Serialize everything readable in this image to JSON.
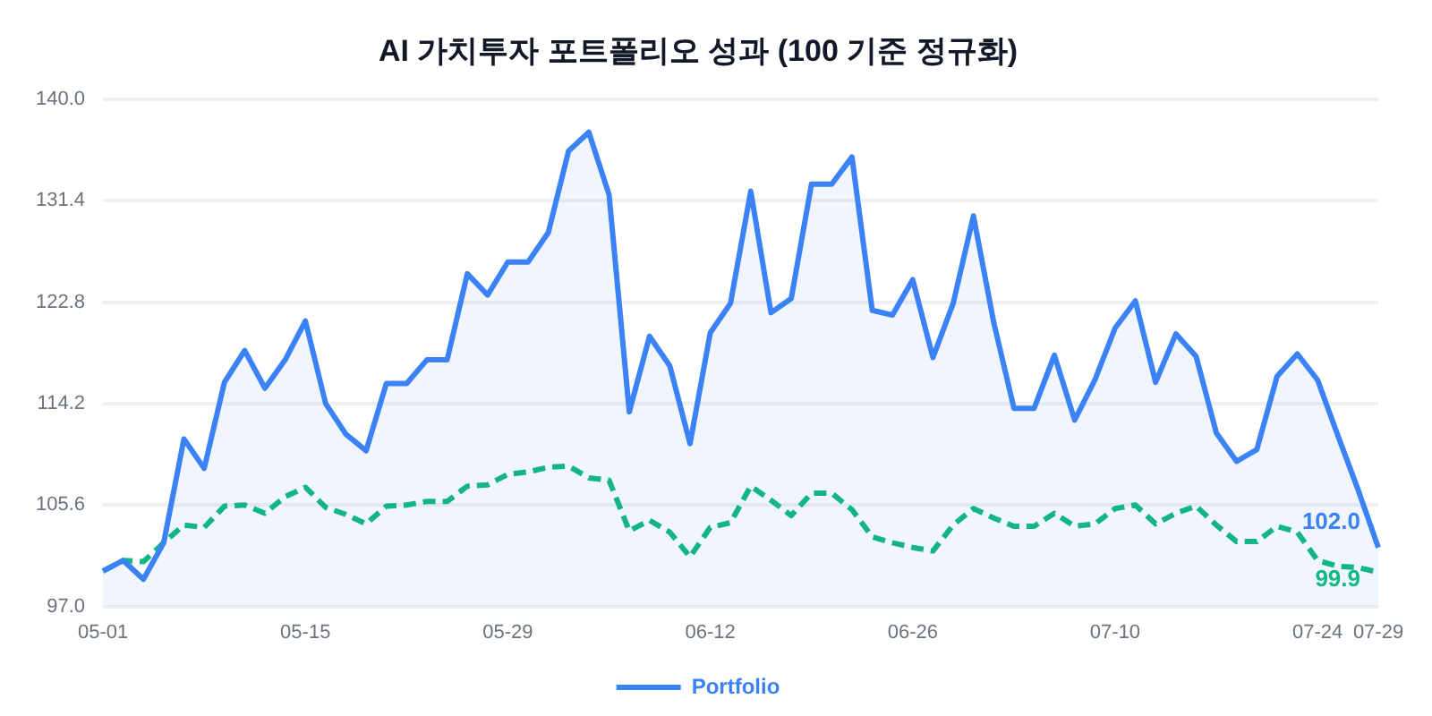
{
  "chart_data": {
    "type": "line",
    "title": "AI 가치투자 포트폴리오 성과 (100 기준 정규화)",
    "categories": [
      "05-01",
      null,
      null,
      null,
      null,
      null,
      null,
      null,
      null,
      null,
      "05-15",
      null,
      null,
      null,
      null,
      null,
      null,
      null,
      null,
      null,
      "05-29",
      null,
      null,
      null,
      null,
      null,
      null,
      null,
      null,
      null,
      "06-12",
      null,
      null,
      null,
      null,
      null,
      null,
      null,
      null,
      null,
      "06-26",
      null,
      null,
      null,
      null,
      null,
      null,
      null,
      null,
      null,
      "07-10",
      null,
      null,
      null,
      null,
      null,
      null,
      null,
      null,
      null,
      "07-24",
      null,
      null,
      "07-29"
    ],
    "series": [
      {
        "name": "Portfolio",
        "type": "area",
        "color": "#3b82f6",
        "line_style": "solid",
        "values": [
          100.0,
          100.9,
          99.3,
          102.4,
          111.2,
          108.7,
          116.0,
          118.7,
          115.5,
          117.9,
          121.2,
          114.2,
          111.6,
          110.2,
          115.9,
          115.9,
          117.9,
          117.9,
          125.2,
          123.4,
          126.2,
          126.2,
          128.7,
          135.6,
          137.2,
          131.9,
          113.5,
          119.9,
          117.4,
          110.8,
          120.2,
          122.7,
          132.2,
          121.9,
          123.1,
          132.8,
          132.8,
          135.1,
          122.1,
          121.7,
          124.7,
          118.1,
          122.7,
          130.1,
          121.1,
          113.8,
          113.8,
          118.3,
          112.8,
          116.2,
          120.6,
          122.9,
          116.0,
          120.1,
          118.2,
          111.7,
          109.3,
          110.3,
          116.5,
          118.4,
          116.2,
          111.5,
          106.9,
          102.0
        ]
      },
      {
        "color": "#10b981",
        "line_style": "dashed",
        "values": [
          100.0,
          100.9,
          100.8,
          102.4,
          103.9,
          103.7,
          105.5,
          105.6,
          104.9,
          106.3,
          107.1,
          105.4,
          104.8,
          104.0,
          105.5,
          105.6,
          105.9,
          105.9,
          107.2,
          107.3,
          108.2,
          108.4,
          108.8,
          108.9,
          107.9,
          107.7,
          103.4,
          104.3,
          103.3,
          101.2,
          103.7,
          104.1,
          107.2,
          106.0,
          104.7,
          106.6,
          106.6,
          105.2,
          102.9,
          102.4,
          102.0,
          101.7,
          103.9,
          105.3,
          104.5,
          103.8,
          103.8,
          104.9,
          103.8,
          104.0,
          105.3,
          105.6,
          104.0,
          104.9,
          105.5,
          103.9,
          102.5,
          102.5,
          103.8,
          103.3,
          100.9,
          100.4,
          100.3,
          99.9
        ]
      }
    ],
    "ylim": [
      97,
      140
    ],
    "yticks": [
      {
        "value": 97,
        "label": "97.0"
      },
      {
        "value": 105.6,
        "label": "105.6"
      },
      {
        "value": 114.2,
        "label": "114.2"
      },
      {
        "value": 122.8,
        "label": "122.8"
      },
      {
        "value": 131.4,
        "label": "131.4"
      },
      {
        "value": 140,
        "label": "140.0"
      }
    ],
    "grid": "y",
    "legend": "bottom",
    "marker": "none",
    "annotations": [
      {
        "text": "102.0",
        "x": "07-29",
        "y": 102.0
      },
      {
        "text": "99.9",
        "x": "07-29",
        "y": 99.9
      }
    ]
  }
}
